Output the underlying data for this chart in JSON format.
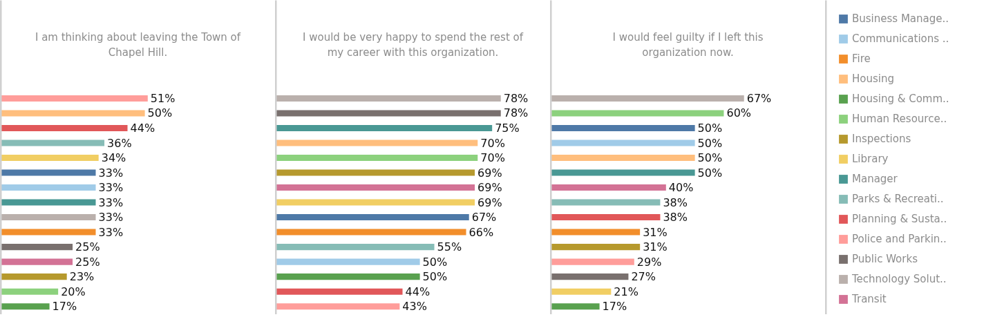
{
  "chart_data": [
    {
      "type": "bar",
      "orientation": "horizontal",
      "title": "I am thinking about leaving the Town of Chapel Hill.",
      "categories": [
        null,
        null,
        null,
        null,
        null,
        null,
        null,
        null,
        null,
        null,
        null,
        null,
        null,
        null,
        null
      ],
      "values": [
        51,
        50,
        44,
        36,
        34,
        33,
        33,
        33,
        33,
        33,
        25,
        25,
        23,
        20,
        17
      ],
      "colors": [
        "#ff9d9a",
        "#ffbe7d",
        "#e15759",
        "#86bcb6",
        "#f1ce63",
        "#4e79a7",
        "#a0cbe8",
        "#499894",
        "#bab0ac",
        "#f28e2b",
        "#79706e",
        "#d37295",
        "#b6992d",
        "#8cd17d",
        "#59a14f"
      ],
      "value_labels": [
        "51%",
        "50%",
        "44%",
        "36%",
        "34%",
        "33%",
        "33%",
        "33%",
        "33%",
        "33%",
        "25%",
        "25%",
        "23%",
        "20%",
        "17%"
      ]
    },
    {
      "type": "bar",
      "orientation": "horizontal",
      "title": "I would be very happy to spend the rest of my career with this organization.",
      "categories": [
        null,
        null,
        null,
        null,
        null,
        null,
        null,
        null,
        null,
        null,
        null,
        null,
        null,
        null,
        null
      ],
      "values": [
        78,
        78,
        75,
        70,
        70,
        69,
        69,
        69,
        67,
        66,
        55,
        50,
        50,
        44,
        43
      ],
      "colors": [
        "#bab0ac",
        "#79706e",
        "#499894",
        "#ffbe7d",
        "#8cd17d",
        "#b6992d",
        "#d37295",
        "#f1ce63",
        "#4e79a7",
        "#f28e2b",
        "#86bcb6",
        "#a0cbe8",
        "#59a14f",
        "#e15759",
        "#ff9d9a"
      ],
      "value_labels": [
        "78%",
        "78%",
        "75%",
        "70%",
        "70%",
        "69%",
        "69%",
        "69%",
        "67%",
        "66%",
        "55%",
        "50%",
        "50%",
        "44%",
        "43%"
      ]
    },
    {
      "type": "bar",
      "orientation": "horizontal",
      "title": "I would feel guilty if I left this organization now.",
      "categories": [
        null,
        null,
        null,
        null,
        null,
        null,
        null,
        null,
        null,
        null,
        null,
        null,
        null,
        null,
        null
      ],
      "values": [
        67,
        60,
        50,
        50,
        50,
        50,
        40,
        38,
        38,
        31,
        31,
        29,
        27,
        21,
        17
      ],
      "colors": [
        "#bab0ac",
        "#8cd17d",
        "#4e79a7",
        "#a0cbe8",
        "#ffbe7d",
        "#499894",
        "#d37295",
        "#86bcb6",
        "#e15759",
        "#f28e2b",
        "#b6992d",
        "#ff9d9a",
        "#79706e",
        "#f1ce63",
        "#59a14f"
      ],
      "value_labels": [
        "67%",
        "60%",
        "50%",
        "50%",
        "50%",
        "50%",
        "40%",
        "38%",
        "38%",
        "31%",
        "31%",
        "29%",
        "27%",
        "21%",
        "17%"
      ]
    },
    {
      "type": "other",
      "legend": "top left",
      "series": [
        {
          "name": "Business Manage..",
          "color": "#4e79a7"
        },
        {
          "name": "Communications ..",
          "color": "#a0cbe8"
        },
        {
          "name": "Fire",
          "color": "#f28e2b"
        },
        {
          "name": "Housing",
          "color": "#ffbe7d"
        },
        {
          "name": "Housing & Comm..",
          "color": "#59a14f"
        },
        {
          "name": "Human Resource..",
          "color": "#8cd17d"
        },
        {
          "name": "Inspections",
          "color": "#b6992d"
        },
        {
          "name": "Library",
          "color": "#f1ce63"
        },
        {
          "name": "Manager",
          "color": "#499894"
        },
        {
          "name": "Parks & Recreati..",
          "color": "#86bcb6"
        },
        {
          "name": "Planning & Susta..",
          "color": "#e15759"
        },
        {
          "name": "Police and Parkin..",
          "color": "#ff9d9a"
        },
        {
          "name": "Public Works",
          "color": "#79706e"
        },
        {
          "name": "Technology Solut..",
          "color": "#bab0ac"
        },
        {
          "name": "Transit",
          "color": "#d37295"
        }
      ]
    }
  ]
}
